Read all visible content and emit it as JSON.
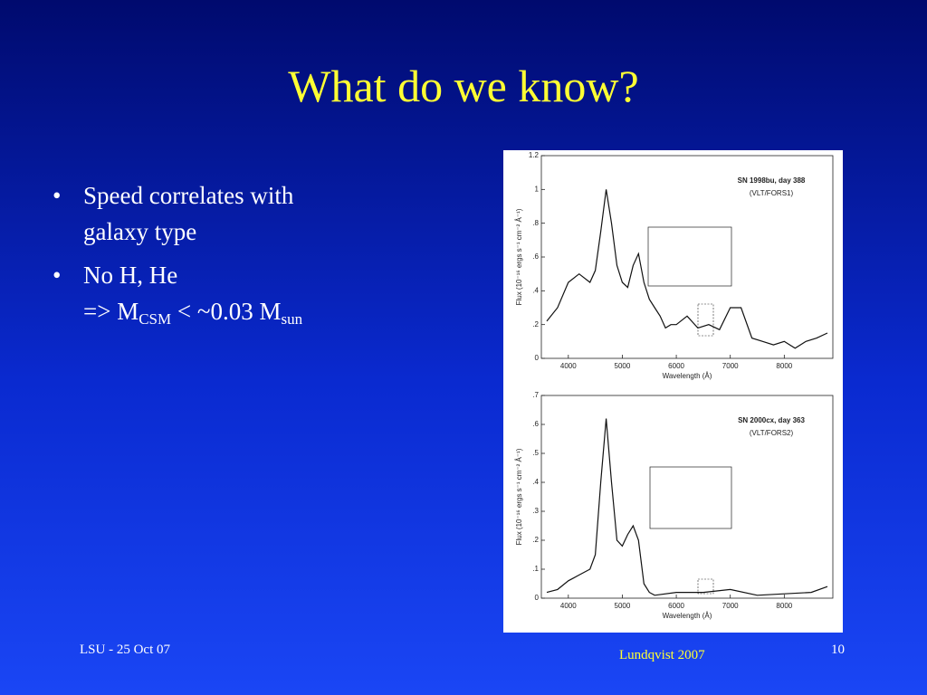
{
  "title": "What do we know?",
  "bullets": [
    {
      "text": "Speed correlates with galaxy type"
    },
    {
      "text": "No H, He",
      "parts": [
        "=> M",
        "CSM",
        " < ~0.03 M",
        "sun"
      ]
    }
  ],
  "figure": {
    "panels": [
      {
        "type": "line",
        "title": "SN 1998bu, day 388",
        "subtitle": "(VLT/FORS1)",
        "xlabel": "Wavelength (Å)",
        "ylabel": "Flux (10⁻¹⁶ ergs s⁻¹ cm⁻² Å⁻¹)",
        "color": "#111111",
        "x": [
          3600,
          3800,
          4000,
          4200,
          4400,
          4500,
          4600,
          4700,
          4800,
          4900,
          5000,
          5100,
          5200,
          5300,
          5400,
          5500,
          5600,
          5700,
          5800,
          5900,
          6000,
          6200,
          6400,
          6600,
          6800,
          7000,
          7200,
          7400,
          7600,
          7800,
          8000,
          8200,
          8400,
          8600,
          8800
        ],
        "values": [
          0.22,
          0.3,
          0.45,
          0.5,
          0.45,
          0.52,
          0.75,
          1.0,
          0.8,
          0.55,
          0.45,
          0.42,
          0.55,
          0.62,
          0.45,
          0.35,
          0.3,
          0.25,
          0.18,
          0.2,
          0.2,
          0.25,
          0.18,
          0.2,
          0.17,
          0.3,
          0.3,
          0.12,
          0.1,
          0.08,
          0.1,
          0.06,
          0.1,
          0.12,
          0.15
        ],
        "xlim": [
          3500,
          8900
        ],
        "ylim": [
          0,
          1.2
        ],
        "xticks": [
          4000,
          5000,
          6000,
          7000,
          8000
        ],
        "yticks": [
          0,
          {
            "value": 0.2,
            "label": ".2"
          },
          {
            "value": 0.4,
            "label": ".4"
          },
          {
            "value": 0.6,
            "label": ".6"
          },
          {
            "value": 0.8,
            "label": ".8"
          },
          1,
          1.2
        ]
      },
      {
        "type": "line",
        "title": "SN 2000cx, day 363",
        "subtitle": "(VLT/FORS2)",
        "xlabel": "Wavelength (Å)",
        "ylabel": "Flux (10⁻¹⁶ ergs s⁻¹ cm⁻² Å⁻¹)",
        "color": "#111111",
        "x": [
          3600,
          3800,
          4000,
          4200,
          4400,
          4500,
          4600,
          4700,
          4800,
          4900,
          5000,
          5100,
          5200,
          5300,
          5400,
          5500,
          5600,
          6000,
          6500,
          7000,
          7500,
          8000,
          8500,
          8800
        ],
        "values": [
          0.02,
          0.03,
          0.06,
          0.08,
          0.1,
          0.15,
          0.4,
          0.62,
          0.4,
          0.2,
          0.18,
          0.22,
          0.25,
          0.2,
          0.05,
          0.02,
          0.01,
          0.02,
          0.02,
          0.03,
          0.01,
          0.015,
          0.02,
          0.04
        ],
        "xlim": [
          3500,
          8900
        ],
        "ylim": [
          0,
          0.7
        ],
        "xticks": [
          4000,
          5000,
          6000,
          7000,
          8000
        ],
        "yticks": [
          0,
          {
            "value": 0.1,
            "label": ".1"
          },
          {
            "value": 0.2,
            "label": ".2"
          },
          {
            "value": 0.3,
            "label": ".3"
          },
          {
            "value": 0.4,
            "label": ".4"
          },
          {
            "value": 0.5,
            "label": ".5"
          },
          {
            "value": 0.6,
            "label": ".6"
          },
          {
            "value": 0.7,
            "label": ".7"
          }
        ]
      }
    ]
  },
  "footer": {
    "left": "LSU - 25 Oct 07",
    "center": "Lundqvist  2007",
    "right": "10"
  }
}
